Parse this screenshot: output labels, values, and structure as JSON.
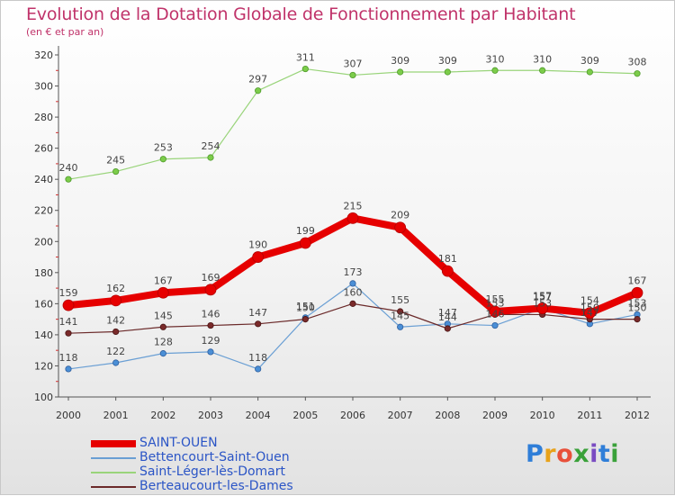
{
  "header": {
    "title": "Evolution de la Dotation Globale de Fonctionnement par Habitant",
    "subtitle": "(en € et par an)"
  },
  "logo": {
    "text": "Proxiti",
    "colors": [
      "#2f7ed8",
      "#e8a21a",
      "#e8503a",
      "#3aa13a",
      "#7a4cc2",
      "#2f7ed8",
      "#3aa13a"
    ]
  },
  "chart_data": {
    "type": "line",
    "title": "Evolution de la Dotation Globale de Fonctionnement par Habitant",
    "subtitle": "(en € et par an)",
    "xlabel": "",
    "ylabel": "",
    "x": [
      "2000",
      "2001",
      "2002",
      "2003",
      "2004",
      "2005",
      "2006",
      "2007",
      "2008",
      "2009",
      "2010",
      "2011",
      "2012"
    ],
    "ylim": [
      100,
      320
    ],
    "yticks": [
      100,
      120,
      140,
      160,
      180,
      200,
      220,
      240,
      260,
      280,
      300,
      320
    ],
    "grid": false,
    "legend": "bottom-left",
    "series": [
      {
        "name": "SAINT-OUEN",
        "color": "#e60000",
        "values": [
          159,
          162,
          167,
          169,
          190,
          199,
          215,
          209,
          181,
          155,
          157,
          154,
          167
        ]
      },
      {
        "name": "Bettencourt-Saint-Ouen",
        "color": "#6a9fd4",
        "values": [
          118,
          122,
          128,
          129,
          118,
          151,
          173,
          145,
          147,
          146,
          157,
          147,
          153
        ]
      },
      {
        "name": "Saint-Léger-lès-Domart",
        "color": "#99d47a",
        "values": [
          240,
          245,
          253,
          254,
          297,
          311,
          307,
          309,
          309,
          310,
          310,
          309,
          308
        ]
      },
      {
        "name": "Berteaucourt-les-Dames",
        "color": "#6b2a2a",
        "values": [
          141,
          142,
          145,
          146,
          147,
          150,
          160,
          155,
          144,
          153,
          153,
          150,
          150
        ]
      }
    ]
  }
}
